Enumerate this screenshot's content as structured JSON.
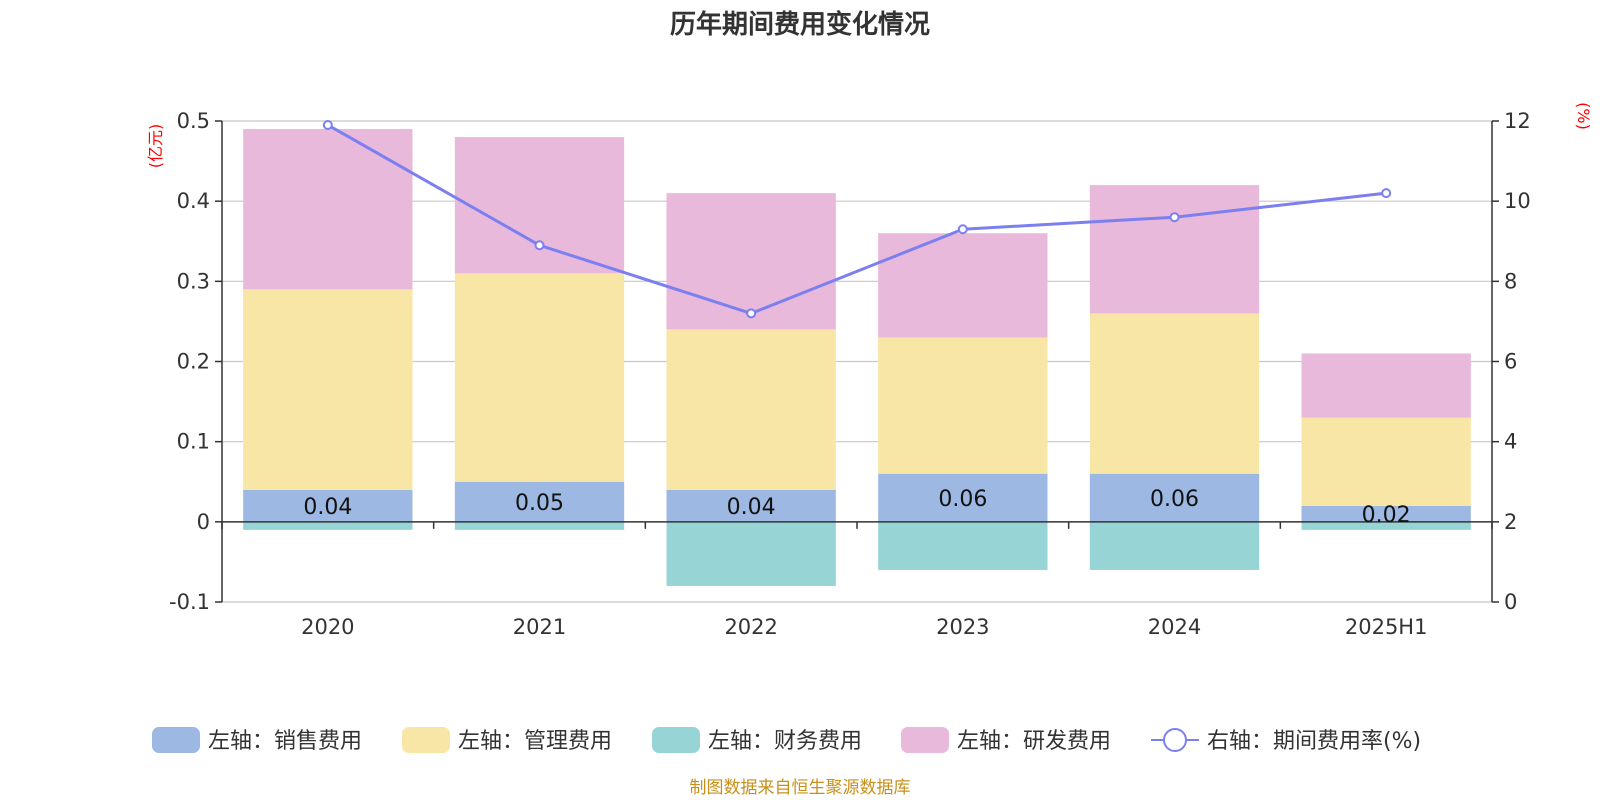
{
  "chart_data": {
    "type": "bar",
    "title": "历年期间费用变化情况",
    "categories": [
      "2020",
      "2021",
      "2022",
      "2023",
      "2024",
      "2025H1"
    ],
    "left_axis": {
      "unit": "(亿元)",
      "ylim": [
        -0.1,
        0.5
      ],
      "ticks": [
        "-0.1",
        "0",
        "0.1",
        "0.2",
        "0.3",
        "0.4",
        "0.5"
      ]
    },
    "right_axis": {
      "unit": "(%)",
      "ylim": [
        0,
        12
      ],
      "ticks": [
        "0",
        "2",
        "4",
        "6",
        "8",
        "10",
        "12"
      ]
    },
    "stacked": true,
    "grid": true,
    "series": [
      {
        "name": "左轴：销售费用",
        "type": "bar",
        "axis": "left",
        "color": "#9db8e2",
        "values": [
          0.04,
          0.05,
          0.04,
          0.06,
          0.06,
          0.02
        ],
        "labels": [
          "0.04",
          "0.05",
          "0.04",
          "0.06",
          "0.06",
          "0.02"
        ]
      },
      {
        "name": "左轴：管理费用",
        "type": "bar",
        "axis": "left",
        "color": "#f8e6a6",
        "values": [
          0.25,
          0.26,
          0.2,
          0.17,
          0.2,
          0.11
        ]
      },
      {
        "name": "左轴：财务费用",
        "type": "bar",
        "axis": "left",
        "color": "#97d4d6",
        "values": [
          -0.01,
          -0.01,
          -0.08,
          -0.06,
          -0.06,
          -0.01
        ]
      },
      {
        "name": "左轴：研发费用",
        "type": "bar",
        "axis": "left",
        "color": "#e8b9da",
        "values": [
          0.2,
          0.17,
          0.17,
          0.13,
          0.16,
          0.08
        ]
      },
      {
        "name": "右轴：期间费用率(%)",
        "type": "line",
        "axis": "right",
        "color": "#7b7ff0",
        "values": [
          11.9,
          8.9,
          7.2,
          9.3,
          9.6,
          10.2
        ]
      }
    ],
    "legend_position": "bottom",
    "source": "制图数据来自恒生聚源数据库"
  }
}
